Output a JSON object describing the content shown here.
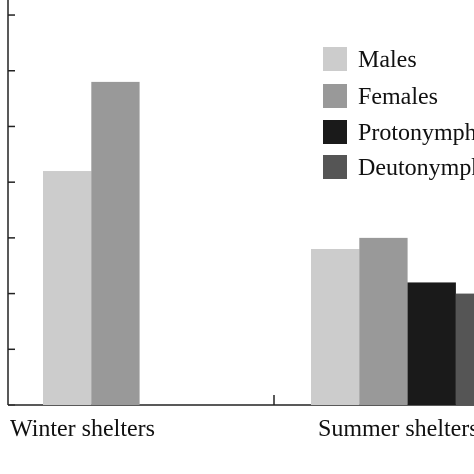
{
  "chart_data": {
    "type": "bar",
    "categories": [
      "Winter shelters",
      "Summer shelters"
    ],
    "series": [
      {
        "name": "Males",
        "color": "#cccccc",
        "values": [
          4.2,
          2.8
        ]
      },
      {
        "name": "Females",
        "color": "#999999",
        "values": [
          5.8,
          3.0
        ]
      },
      {
        "name": "Protonymphs",
        "color": "#1a1a1a",
        "values": [
          0,
          2.2
        ]
      },
      {
        "name": "Deutonymphs",
        "color": "#555555",
        "values": [
          0,
          2.0
        ]
      }
    ],
    "ylim": [
      0,
      7.27
    ],
    "yticks": [
      0,
      1,
      2,
      3,
      4,
      5,
      6,
      7
    ]
  }
}
